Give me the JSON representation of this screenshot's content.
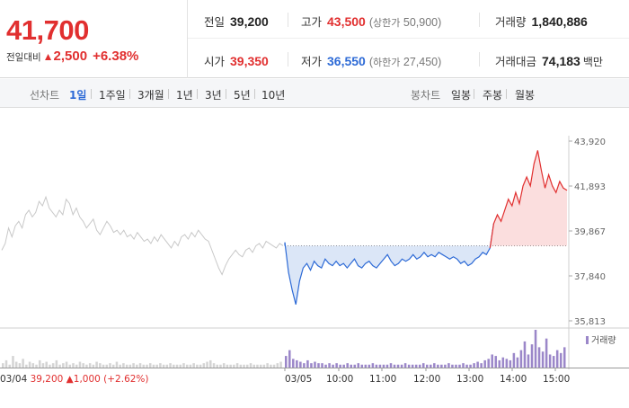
{
  "summary": {
    "current_price": "41,700",
    "change_label": "전일대비",
    "change_arrow": "▲",
    "change_amount": "2,500",
    "change_rate": "+6.38%"
  },
  "stats": {
    "prev_close": {
      "label": "전일",
      "value": "39,200"
    },
    "high": {
      "label": "고가",
      "value": "43,500",
      "sub_label": "상한가",
      "sub_value": "50,900"
    },
    "volume": {
      "label": "거래량",
      "value": "1,840,886"
    },
    "open": {
      "label": "시가",
      "value": "39,350"
    },
    "low": {
      "label": "저가",
      "value": "36,550",
      "sub_label": "하한가",
      "sub_value": "27,450"
    },
    "amount": {
      "label": "거래대금",
      "value": "74,183",
      "unit": "백만"
    }
  },
  "toolbar": {
    "line_chart_label": "선차트",
    "periods": [
      "1일",
      "1주일",
      "3개월",
      "1년",
      "3년",
      "5년",
      "10년"
    ],
    "active_period": "1일",
    "candle_chart_label": "봉차트",
    "candle_periods": [
      "일봉",
      "주봉",
      "월봉"
    ]
  },
  "colors": {
    "up": "#e12f2f",
    "down": "#2d6ad6",
    "prev_day": "#c8c8c8",
    "volume": "#9b87c9"
  },
  "chart_data": {
    "type": "line",
    "y_ticks": [
      "43,920",
      "41,893",
      "39,867",
      "37,840",
      "35,813"
    ],
    "ylim": [
      35813,
      43920
    ],
    "baseline": 39200,
    "x_ticks": [
      "03/05",
      "10:00",
      "11:00",
      "12:00",
      "13:00",
      "14:00",
      "15:00"
    ],
    "prev_day_label": "03/04",
    "prev_day_close": "39,200",
    "prev_day_change_arrow": "▲",
    "prev_day_change": "1,000",
    "prev_day_rate": "(+2.62%)",
    "volume_legend": "거래량",
    "prev_day_series": [
      39000,
      39300,
      40000,
      39600,
      40100,
      40300,
      40000,
      40600,
      40800,
      40500,
      40700,
      41200,
      41000,
      41400,
      40900,
      40700,
      40500,
      40800,
      40600,
      41300,
      41100,
      40600,
      40900,
      40500,
      40300,
      40000,
      40200,
      40400,
      39900,
      39700,
      40000,
      40300,
      40100,
      39800,
      39900,
      39700,
      39900,
      39600,
      39700,
      39500,
      39800,
      39600,
      39400,
      39500,
      39300,
      39600,
      39400,
      39700,
      39500,
      39300,
      39100,
      39400,
      39200,
      39600,
      39700,
      39500,
      39800,
      39600,
      39900,
      39700,
      39500,
      39400,
      39000,
      38600,
      38200,
      37900,
      38300,
      38600,
      38800,
      39000,
      38800,
      38700,
      39000,
      39100,
      38900,
      39200,
      39300,
      39100,
      39400,
      39300,
      39200,
      39100,
      39300,
      39200
    ],
    "today_series": [
      39350,
      38000,
      37200,
      36550,
      37600,
      38200,
      38400,
      38100,
      38500,
      38300,
      38200,
      38600,
      38400,
      38300,
      38500,
      38300,
      38400,
      38200,
      38400,
      38600,
      38300,
      38200,
      38400,
      38500,
      38300,
      38200,
      38400,
      38600,
      38800,
      38500,
      38300,
      38400,
      38600,
      38500,
      38600,
      38800,
      38600,
      38700,
      38900,
      38700,
      38800,
      38700,
      38900,
      38800,
      38700,
      38600,
      38700,
      38600,
      38400,
      38500,
      38300,
      38400,
      38600,
      38700,
      38900,
      38800,
      39100,
      40200,
      40600,
      40300,
      40800,
      41300,
      41000,
      41600,
      41100,
      41900,
      42300,
      41900,
      42900,
      43500,
      42600,
      41800,
      42400,
      41900,
      41600,
      42100,
      41800,
      41700
    ],
    "prev_day_volume": [
      3,
      5,
      2,
      8,
      4,
      3,
      6,
      2,
      4,
      3,
      2,
      5,
      3,
      4,
      2,
      3,
      5,
      2,
      3,
      4,
      2,
      3,
      2,
      4,
      3,
      2,
      3,
      2,
      4,
      3,
      2,
      2,
      3,
      2,
      4,
      2,
      3,
      2,
      2,
      3,
      2,
      3,
      2,
      2,
      3,
      2,
      2,
      3,
      2,
      2,
      3,
      2,
      2,
      2,
      3,
      2,
      2,
      3,
      2,
      2,
      3,
      4,
      5,
      3,
      2,
      2,
      3,
      2,
      2,
      2,
      3,
      2,
      2,
      2,
      3,
      2,
      2,
      2,
      2,
      3,
      2,
      2,
      3,
      4
    ],
    "today_volume": [
      8,
      12,
      6,
      5,
      4,
      3,
      5,
      3,
      4,
      3,
      3,
      2,
      3,
      2,
      3,
      2,
      2,
      3,
      2,
      2,
      3,
      2,
      2,
      2,
      3,
      2,
      2,
      2,
      2,
      3,
      2,
      2,
      2,
      3,
      2,
      2,
      2,
      2,
      3,
      2,
      2,
      3,
      2,
      2,
      2,
      3,
      2,
      2,
      2,
      3,
      2,
      2,
      3,
      4,
      3,
      5,
      6,
      9,
      8,
      5,
      7,
      6,
      5,
      10,
      7,
      12,
      18,
      9,
      16,
      26,
      14,
      11,
      20,
      9,
      8,
      12,
      10,
      14
    ]
  }
}
